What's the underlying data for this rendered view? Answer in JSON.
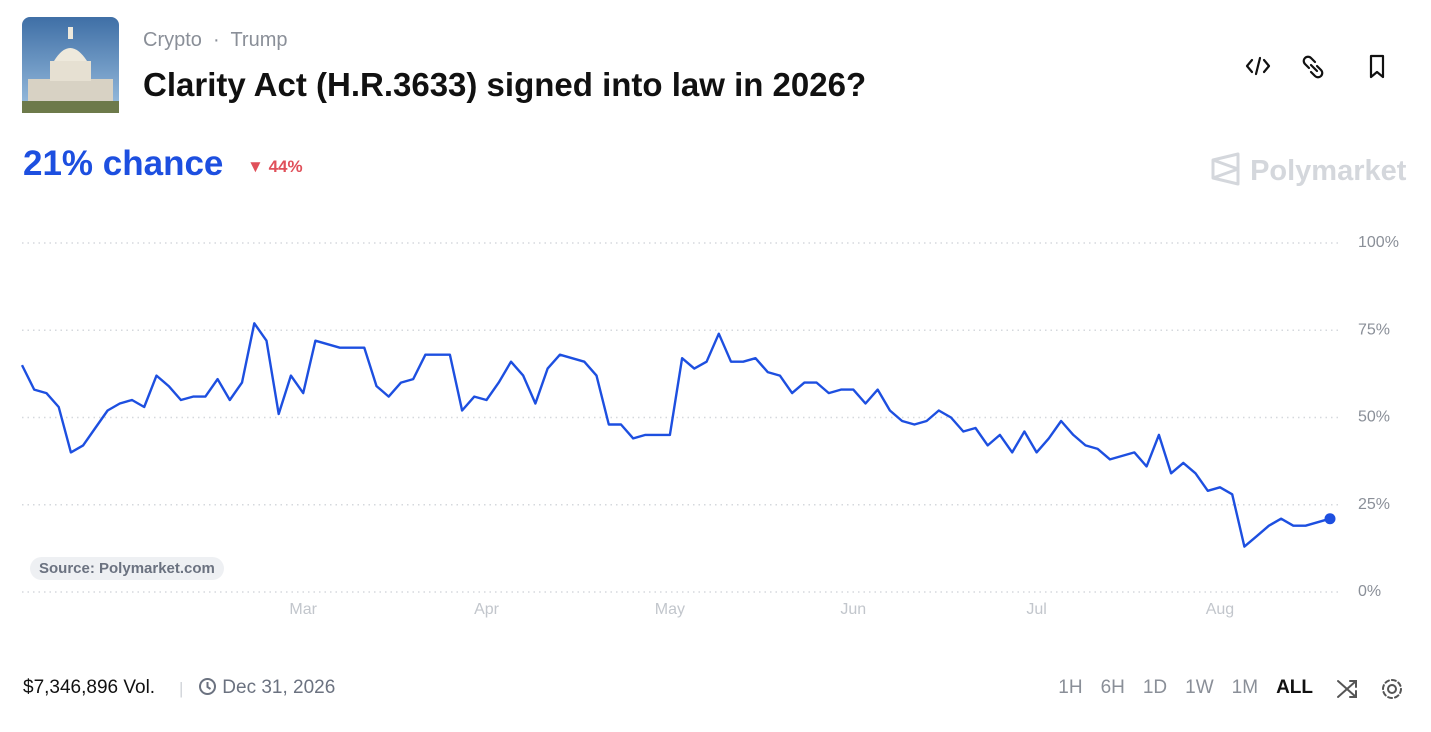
{
  "header": {
    "tags": [
      "Crypto",
      "Trump"
    ],
    "title": "Clarity Act (H.R.3633) signed into law in 2026?",
    "chance": "21% chance",
    "change": "44%",
    "brand": "Polymarket"
  },
  "chart_data": {
    "type": "line",
    "source": "Source: Polymarket.com",
    "color": "#1d4fe0",
    "grid": true,
    "categories": [
      null,
      null,
      null,
      null,
      null,
      null,
      null,
      null,
      null,
      null,
      null,
      null,
      null,
      null,
      null,
      null,
      null,
      null,
      null,
      null,
      null,
      null,
      null,
      "Mar",
      null,
      null,
      null,
      null,
      null,
      null,
      null,
      null,
      null,
      null,
      null,
      null,
      null,
      null,
      "Apr",
      null,
      null,
      null,
      null,
      null,
      null,
      null,
      null,
      null,
      null,
      null,
      null,
      null,
      null,
      "May",
      null,
      null,
      null,
      null,
      null,
      null,
      null,
      null,
      null,
      null,
      null,
      null,
      null,
      null,
      "Jun",
      null,
      null,
      null,
      null,
      null,
      null,
      null,
      null,
      null,
      null,
      null,
      null,
      null,
      null,
      "Jul",
      null,
      null,
      null,
      null,
      null,
      null,
      null,
      null,
      null,
      null,
      null,
      null,
      null,
      null,
      "Aug",
      null,
      null,
      null,
      null,
      null,
      null,
      null,
      null,
      null
    ],
    "values": [
      65,
      58,
      57,
      53,
      40,
      42,
      47,
      52,
      54,
      55,
      53,
      62,
      59,
      55,
      56,
      56,
      61,
      55,
      60,
      77,
      72,
      51,
      62,
      57,
      72,
      71,
      70,
      70,
      70,
      59,
      56,
      60,
      61,
      68,
      68,
      68,
      52,
      56,
      55,
      60,
      66,
      62,
      54,
      64,
      68,
      67,
      66,
      62,
      48,
      48,
      44,
      45,
      45,
      45,
      67,
      64,
      66,
      74,
      66,
      66,
      67,
      63,
      62,
      57,
      60,
      60,
      57,
      58,
      58,
      54,
      58,
      52,
      49,
      48,
      49,
      52,
      50,
      46,
      47,
      42,
      45,
      40,
      46,
      40,
      44,
      49,
      45,
      42,
      41,
      38,
      39,
      40,
      36,
      45,
      34,
      37,
      34,
      29,
      30,
      28,
      13,
      16,
      19,
      21,
      19,
      19,
      20,
      21
    ],
    "ylim": [
      0,
      100
    ],
    "yticks": [
      {
        "value": 0,
        "label": "0%"
      },
      {
        "value": 25,
        "label": "25%"
      },
      {
        "value": 50,
        "label": "50%"
      },
      {
        "value": 75,
        "label": "75%"
      },
      {
        "value": 100,
        "label": "100%"
      }
    ]
  },
  "footer": {
    "volume": "$7,346,896 Vol.",
    "end_date": "Dec 31, 2026",
    "ranges": [
      "1H",
      "6H",
      "1D",
      "1W",
      "1M",
      "ALL"
    ],
    "active_range": 5
  }
}
